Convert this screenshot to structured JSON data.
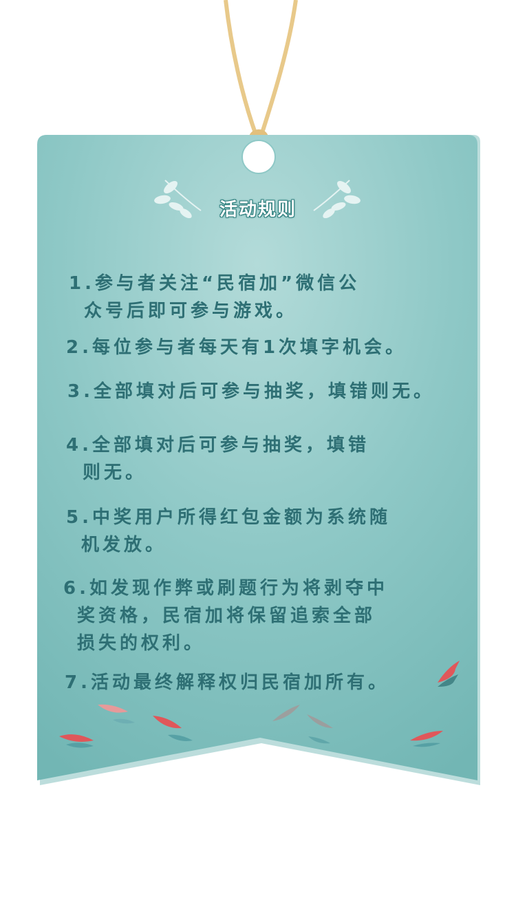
{
  "title": "活动规则",
  "rules": [
    {
      "line1": "1.参与者关注“民宿加”微信公",
      "line2": "众号后即可参与游戏。"
    },
    {
      "line1": "2.每位参与者每天有1次填字机会。"
    },
    {
      "line1": "3.全部填对后可参与抽奖，填错则无。"
    },
    {
      "line1": "4.全部填对后可参与抽奖，填错",
      "line2": "则无。"
    },
    {
      "line1": "5.中奖用户所得红包金额为系统随",
      "line2": "机发放。"
    },
    {
      "line1": "6.如发现作弊或刷题行为将剥夺中",
      "line2": "奖资格，民宿加将保留追索全部",
      "line3": "损失的权利。"
    },
    {
      "line1": "7.活动最终解释权归民宿加所有。"
    }
  ],
  "colors": {
    "card": "#79bdbb",
    "card_light": "#a9d4d3",
    "text": "#2e6f74",
    "string": "#e8c98a",
    "koi": "#e0575a",
    "fish_shadow": "#4f9aa0"
  }
}
